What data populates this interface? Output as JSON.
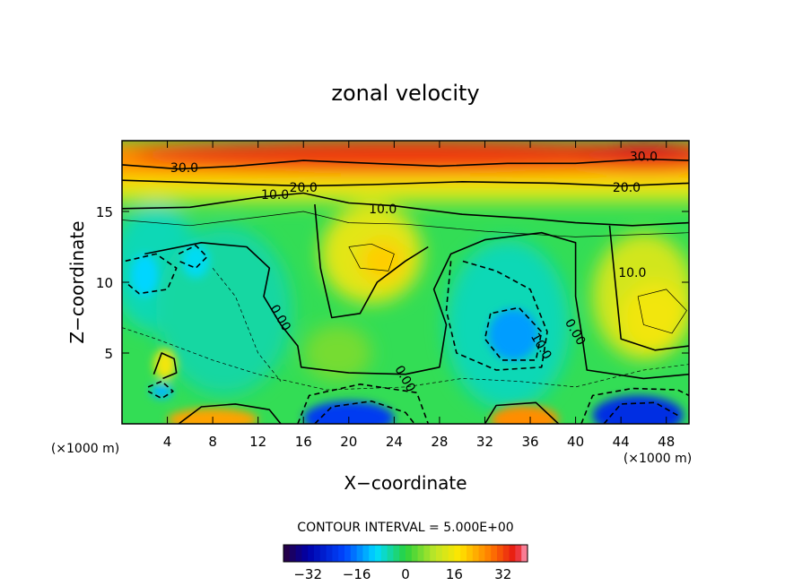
{
  "chart_data": {
    "type": "heatmap",
    "title": "zonal velocity",
    "xlabel": "X−coordinate",
    "ylabel": "Z−coordinate",
    "x_unit": "(×1000 m)",
    "xlim": [
      0,
      50
    ],
    "ylim": [
      0,
      20
    ],
    "x_ticks": [
      "4",
      "8",
      "12",
      "16",
      "20",
      "24",
      "28",
      "32",
      "36",
      "40",
      "44",
      "48"
    ],
    "y_ticks": [
      "5",
      "10",
      "15"
    ],
    "contour_interval_text": "CONTOUR INTERVAL = 5.000E+00",
    "colorbar": {
      "min": -40,
      "max": 40,
      "ticks": [
        "−32",
        "−16",
        "0",
        "16",
        "32"
      ],
      "tick_values": [
        -32,
        -16,
        0,
        16,
        32
      ]
    },
    "contour_labels": [
      {
        "text": "30.0",
        "x": 5.5,
        "z": 18.1
      },
      {
        "text": "30.0",
        "x": 46.0,
        "z": 18.9
      },
      {
        "text": "20.0",
        "x": 16.0,
        "z": 16.7
      },
      {
        "text": "20.0",
        "x": 44.5,
        "z": 16.7
      },
      {
        "text": "10.0",
        "x": 13.5,
        "z": 16.2
      },
      {
        "text": "10.0",
        "x": 23.0,
        "z": 15.2
      },
      {
        "text": "10.0",
        "x": 45.0,
        "z": 10.7
      },
      {
        "text": "0.00",
        "x": 14.0,
        "z": 7.5
      },
      {
        "text": "0.00",
        "x": 25.0,
        "z": 3.2
      },
      {
        "text": "0.00",
        "x": 40.0,
        "z": 6.5
      },
      {
        "text": "10.0",
        "x": 37.0,
        "z": 5.5
      }
    ],
    "regions": [
      {
        "desc": "upper band",
        "z_range": [
          17,
          20
        ],
        "value": 32
      },
      {
        "desc": "jet core",
        "x": 46,
        "z": 19,
        "value": 36
      },
      {
        "desc": "shear layer",
        "z_range": [
          15,
          17
        ],
        "value": 17
      },
      {
        "desc": "central warm patch",
        "x": 23,
        "z": 11.5,
        "value": 18
      },
      {
        "desc": "right warm patch",
        "x": 47,
        "z": 8,
        "value": 16
      },
      {
        "desc": "central negative",
        "x": 34,
        "z": 6,
        "value": -12
      },
      {
        "desc": "left negative",
        "x": 2,
        "z": 10.5,
        "value": -8
      },
      {
        "desc": "bottom negative core",
        "x": 45,
        "z": 0.5,
        "value": -26
      },
      {
        "desc": "bottom negative",
        "x": 20,
        "z": 0.5,
        "value": -24
      },
      {
        "desc": "bottom positive",
        "x": 35,
        "z": 0.5,
        "value": 26
      },
      {
        "desc": "bottom positive",
        "x": 7,
        "z": 0.5,
        "value": 22
      }
    ]
  }
}
